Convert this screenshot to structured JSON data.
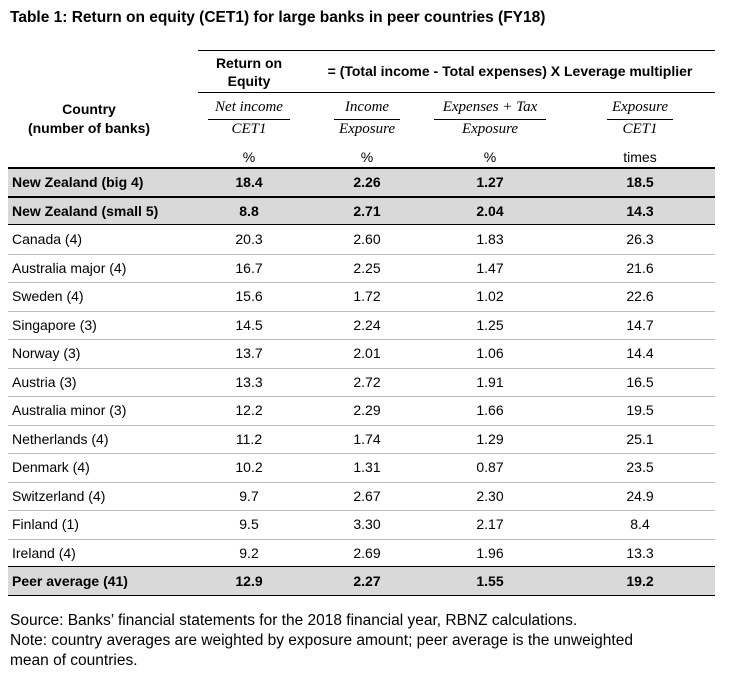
{
  "title": "Table 1: Return on equity (CET1) for large banks in peer countries (FY18)",
  "header": {
    "country_label": [
      "Country",
      "(number of banks)"
    ],
    "roe_label": [
      "Return on",
      "Equity"
    ],
    "formula": "= (Total income - Total expenses) X Leverage multiplier",
    "fractions": [
      {
        "numerator": "Net income",
        "denominator": "CET1"
      },
      {
        "numerator": "Income",
        "denominator": "Exposure"
      },
      {
        "numerator": "Expenses + Tax",
        "denominator": "Exposure"
      },
      {
        "numerator": "Exposure",
        "denominator": "CET1"
      }
    ],
    "units": [
      "%",
      "%",
      "%",
      "times"
    ]
  },
  "table": {
    "highlight_rows": [
      0,
      1,
      14
    ],
    "rows": [
      [
        "New Zealand (big 4)",
        "18.4",
        "2.26",
        "1.27",
        "18.5"
      ],
      [
        "New Zealand (small 5)",
        "8.8",
        "2.71",
        "2.04",
        "14.3"
      ],
      [
        "Canada (4)",
        "20.3",
        "2.60",
        "1.83",
        "26.3"
      ],
      [
        "Australia major (4)",
        "16.7",
        "2.25",
        "1.47",
        "21.6"
      ],
      [
        "Sweden (4)",
        "15.6",
        "1.72",
        "1.02",
        "22.6"
      ],
      [
        "Singapore (3)",
        "14.5",
        "2.24",
        "1.25",
        "14.7"
      ],
      [
        "Norway (3)",
        "13.7",
        "2.01",
        "1.06",
        "14.4"
      ],
      [
        "Austria (3)",
        "13.3",
        "2.72",
        "1.91",
        "16.5"
      ],
      [
        "Australia minor (3)",
        "12.2",
        "2.29",
        "1.66",
        "19.5"
      ],
      [
        "Netherlands (4)",
        "11.2",
        "1.74",
        "1.29",
        "25.1"
      ],
      [
        "Denmark (4)",
        "10.2",
        "1.31",
        "0.87",
        "23.5"
      ],
      [
        "Switzerland (4)",
        "9.7",
        "2.67",
        "2.30",
        "24.9"
      ],
      [
        "Finland (1)",
        "9.5",
        "3.30",
        "2.17",
        "8.4"
      ],
      [
        "Ireland (4)",
        "9.2",
        "2.69",
        "1.96",
        "13.3"
      ],
      [
        "Peer average (41)",
        "12.9",
        "2.27",
        "1.55",
        "19.2"
      ]
    ]
  },
  "footer": {
    "source": "Source: Banks’ financial statements for the 2018 financial year, RBNZ calculations.",
    "note": [
      "Note: country averages are weighted by exposure amount; peer average is the unweighted",
      "mean of countries."
    ]
  }
}
